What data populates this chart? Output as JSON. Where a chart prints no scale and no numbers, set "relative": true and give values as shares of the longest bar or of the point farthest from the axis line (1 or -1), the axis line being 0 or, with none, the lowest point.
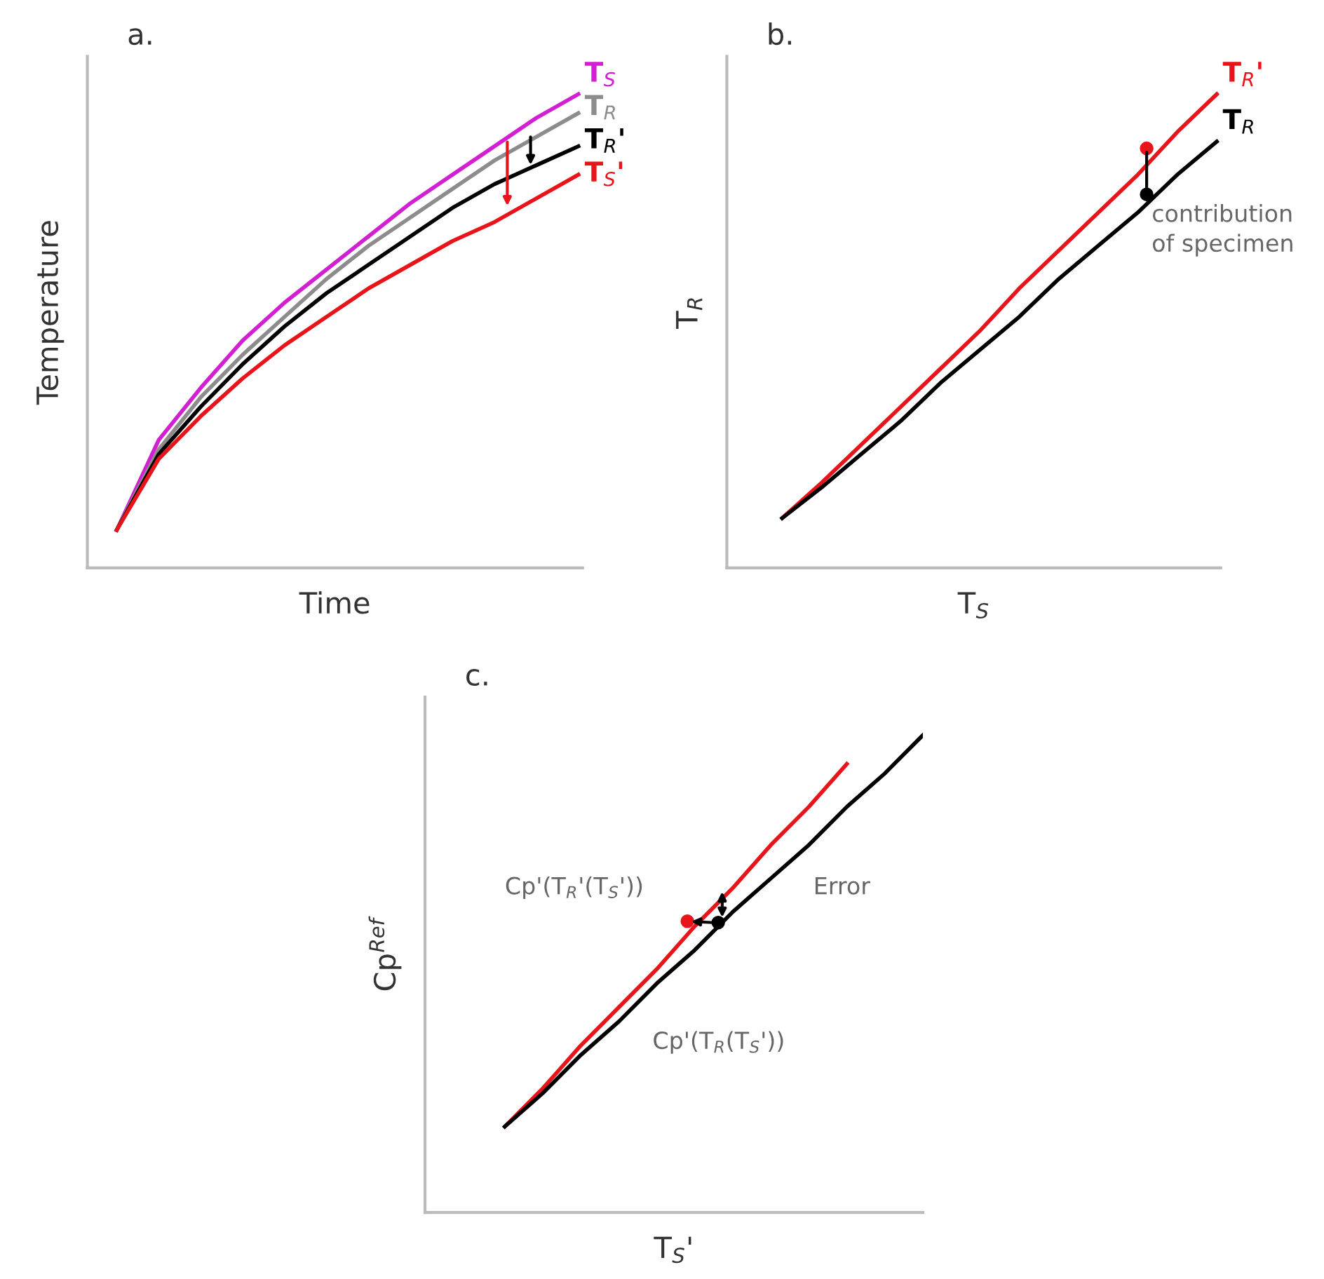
{
  "chart_data": [
    {
      "type": "line",
      "title": "a.",
      "xlabel": "Time",
      "ylabel": "Temperature",
      "relative": true,
      "tick_labels": false,
      "legend": "top right",
      "marker": "none",
      "line_style": "solid",
      "categories": [
        null,
        null,
        null,
        null,
        null,
        null,
        null,
        null,
        null,
        null,
        null,
        null
      ],
      "series": [
        {
          "name": "T$_{S}$",
          "color": "#d21fd2",
          "values": [
            0.08,
            0.27,
            0.38,
            0.48,
            0.56,
            0.63,
            0.7,
            0.77,
            0.83,
            0.89,
            0.95,
            1.0
          ]
        },
        {
          "name": "T$_{R}$",
          "color": "#8c8c8c",
          "values": [
            0.08,
            0.25,
            0.36,
            0.45,
            0.53,
            0.61,
            0.68,
            0.74,
            0.8,
            0.86,
            0.91,
            0.96
          ]
        },
        {
          "name": "T$_{R}$'",
          "color": "#000000",
          "values": [
            0.08,
            0.24,
            0.34,
            0.43,
            0.51,
            0.58,
            0.64,
            0.7,
            0.76,
            0.81,
            0.85,
            0.89
          ]
        },
        {
          "name": "T$_{S}$'",
          "color": "#e8141a",
          "values": [
            0.08,
            0.23,
            0.32,
            0.4,
            0.47,
            0.53,
            0.59,
            0.64,
            0.69,
            0.73,
            0.78,
            0.83
          ]
        }
      ]
    },
    {
      "type": "line",
      "title": "b.",
      "xlabel": "T$_{S}$",
      "ylabel": "T$_{R}$",
      "relative": true,
      "tick_labels": false,
      "legend": "top right",
      "marker": "none",
      "line_style": "solid",
      "categories": [
        null,
        null,
        null,
        null,
        null,
        null,
        null,
        null,
        null,
        null,
        null,
        null
      ],
      "series": [
        {
          "name": "T$_{R}$'",
          "color": "#e8141a",
          "values": [
            0.105,
            0.18,
            0.26,
            0.34,
            0.42,
            0.5,
            0.59,
            0.67,
            0.75,
            0.83,
            0.92,
            1.0
          ]
        },
        {
          "name": "T$_{R}$",
          "color": "#000000",
          "values": [
            0.105,
            0.17,
            0.24,
            0.31,
            0.39,
            0.46,
            0.53,
            0.61,
            0.68,
            0.75,
            0.83,
            0.9
          ]
        }
      ],
      "annotations": [
        "contribution\nof specimen"
      ]
    },
    {
      "type": "line",
      "title": "c.",
      "xlabel": "T$_{S}$'",
      "ylabel": "Cp$^{Ref}$",
      "relative": true,
      "tick_labels": false,
      "marker": "none",
      "line_style": "solid",
      "categories": [
        null,
        null,
        null,
        null,
        null,
        null,
        null,
        null,
        null,
        null,
        null,
        null
      ],
      "series": [
        {
          "color": "#e8141a",
          "values": [
            0.18,
            0.26,
            0.35,
            0.43,
            0.51,
            0.6,
            0.68,
            0.77,
            0.85,
            0.94,
            null,
            null
          ]
        },
        {
          "color": "#000000",
          "values": [
            0.18,
            0.25,
            0.33,
            0.4,
            0.48,
            0.55,
            0.63,
            0.7,
            0.77,
            0.85,
            0.92,
            1.0
          ]
        }
      ],
      "annotations": [
        "Cp'(T$_{R}$'(T$_{S}$'))",
        "Error",
        "Cp'(T$_{R}$(T$_{S}$'))"
      ]
    }
  ]
}
